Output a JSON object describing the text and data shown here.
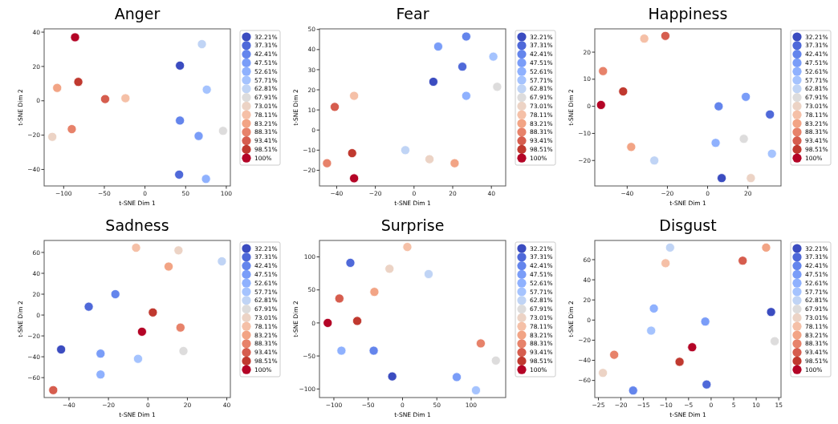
{
  "chart_data": [
    {
      "type": "scatter",
      "title": "Anger",
      "xlabel": "t-SNE Dim 1",
      "ylabel": "t-SNE Dim 2",
      "xlim": [
        -124,
        105
      ],
      "ylim": [
        -49.6,
        41.9
      ],
      "xticks": [
        -100,
        -50,
        0,
        50,
        100
      ],
      "yticks": [
        -40,
        -20,
        0,
        20,
        40
      ],
      "grid": false,
      "legend": "right",
      "marker": "circle",
      "series": [
        {
          "name": "32.21%",
          "color": "#3b4cc0",
          "x": [
            43
          ],
          "values": [
            20.5
          ]
        },
        {
          "name": "37.31%",
          "color": "#4f69d9",
          "x": [
            42
          ],
          "values": [
            -43
          ]
        },
        {
          "name": "42.41%",
          "color": "#6485ec",
          "x": [
            43
          ],
          "values": [
            -11.5
          ]
        },
        {
          "name": "47.51%",
          "color": "#7a9df8",
          "x": [
            66
          ],
          "values": [
            -20.5
          ]
        },
        {
          "name": "52.61%",
          "color": "#8fb1fe",
          "x": [
            75
          ],
          "values": [
            -45.5
          ]
        },
        {
          "name": "57.71%",
          "color": "#a5c3fe",
          "x": [
            76
          ],
          "values": [
            6.5
          ]
        },
        {
          "name": "62.81%",
          "color": "#c0d4f5",
          "x": [
            70
          ],
          "values": [
            33
          ]
        },
        {
          "name": "67.91%",
          "color": "#dddcdc",
          "x": [
            96
          ],
          "values": [
            -17.5
          ]
        },
        {
          "name": "73.01%",
          "color": "#ecd3c5",
          "x": [
            -114
          ],
          "values": [
            -21
          ]
        },
        {
          "name": "78.11%",
          "color": "#f5c0a7",
          "x": [
            -24
          ],
          "values": [
            1.5
          ]
        },
        {
          "name": "83.21%",
          "color": "#f2a485",
          "x": [
            -108
          ],
          "values": [
            7.5
          ]
        },
        {
          "name": "88.31%",
          "color": "#e7826a",
          "x": [
            -90
          ],
          "values": [
            -16.5
          ]
        },
        {
          "name": "93.41%",
          "color": "#d65d4e",
          "x": [
            -49
          ],
          "values": [
            1
          ]
        },
        {
          "name": "98.51%",
          "color": "#c0392f",
          "x": [
            -82
          ],
          "values": [
            11
          ]
        },
        {
          "name": "100%",
          "color": "#b40426",
          "x": [
            -86
          ],
          "values": [
            37
          ]
        }
      ]
    },
    {
      "type": "scatter",
      "title": "Fear",
      "xlabel": "t-SNE Dim 1",
      "ylabel": "t-SNE Dim 2",
      "xlim": [
        -48.9,
        47.4
      ],
      "ylim": [
        -27.8,
        50.3
      ],
      "xticks": [
        -40,
        -20,
        0,
        20,
        40
      ],
      "yticks": [
        -20,
        -10,
        0,
        10,
        20,
        30,
        40,
        50
      ],
      "grid": false,
      "legend": "right",
      "marker": "circle",
      "series": [
        {
          "name": "32.21%",
          "color": "#3b4cc0",
          "x": [
            10
          ],
          "values": [
            24
          ]
        },
        {
          "name": "37.31%",
          "color": "#4f69d9",
          "x": [
            25
          ],
          "values": [
            31.5
          ]
        },
        {
          "name": "42.41%",
          "color": "#6485ec",
          "x": [
            27
          ],
          "values": [
            46.5
          ]
        },
        {
          "name": "47.51%",
          "color": "#7a9df8",
          "x": [
            12.5
          ],
          "values": [
            41.5
          ]
        },
        {
          "name": "52.61%",
          "color": "#8fb1fe",
          "x": [
            27
          ],
          "values": [
            17
          ]
        },
        {
          "name": "57.71%",
          "color": "#a5c3fe",
          "x": [
            41
          ],
          "values": [
            36.5
          ]
        },
        {
          "name": "62.81%",
          "color": "#c0d4f5",
          "x": [
            -4.5
          ],
          "values": [
            -10
          ]
        },
        {
          "name": "67.91%",
          "color": "#dddcdc",
          "x": [
            43
          ],
          "values": [
            21.5
          ]
        },
        {
          "name": "73.01%",
          "color": "#ecd3c5",
          "x": [
            8
          ],
          "values": [
            -14.5
          ]
        },
        {
          "name": "78.11%",
          "color": "#f5c0a7",
          "x": [
            -31
          ],
          "values": [
            17
          ]
        },
        {
          "name": "83.21%",
          "color": "#f2a485",
          "x": [
            21
          ],
          "values": [
            -16.5
          ]
        },
        {
          "name": "88.31%",
          "color": "#e7826a",
          "x": [
            -45
          ],
          "values": [
            -16.5
          ]
        },
        {
          "name": "93.41%",
          "color": "#d65d4e",
          "x": [
            -41
          ],
          "values": [
            11.5
          ]
        },
        {
          "name": "98.51%",
          "color": "#c0392f",
          "x": [
            -32
          ],
          "values": [
            -11.5
          ]
        },
        {
          "name": "100%",
          "color": "#b40426",
          "x": [
            -31
          ],
          "values": [
            -24
          ]
        }
      ]
    },
    {
      "type": "scatter",
      "title": "Happiness",
      "xlabel": "t-SNE Dim 1",
      "ylabel": "t-SNE Dim 2",
      "xlim": [
        -56.1,
        36.5
      ],
      "ylim": [
        -29.4,
        28.6
      ],
      "xticks": [
        -40,
        -20,
        0,
        20
      ],
      "yticks": [
        -20,
        -10,
        0,
        10,
        20
      ],
      "grid": false,
      "legend": "right",
      "marker": "circle",
      "series": [
        {
          "name": "32.21%",
          "color": "#3b4cc0",
          "x": [
            7
          ],
          "values": [
            -26.5
          ]
        },
        {
          "name": "37.31%",
          "color": "#4f69d9",
          "x": [
            31
          ],
          "values": [
            -3
          ]
        },
        {
          "name": "42.41%",
          "color": "#6485ec",
          "x": [
            5.5
          ],
          "values": [
            0
          ]
        },
        {
          "name": "47.51%",
          "color": "#7a9df8",
          "x": [
            19
          ],
          "values": [
            3.5
          ]
        },
        {
          "name": "52.61%",
          "color": "#8fb1fe",
          "x": [
            4
          ],
          "values": [
            -13.5
          ]
        },
        {
          "name": "57.71%",
          "color": "#a5c3fe",
          "x": [
            32
          ],
          "values": [
            -17.5
          ]
        },
        {
          "name": "62.81%",
          "color": "#c0d4f5",
          "x": [
            -26.5
          ],
          "values": [
            -20
          ]
        },
        {
          "name": "67.91%",
          "color": "#dddcdc",
          "x": [
            18
          ],
          "values": [
            -12
          ]
        },
        {
          "name": "73.01%",
          "color": "#ecd3c5",
          "x": [
            21.5
          ],
          "values": [
            -26.5
          ]
        },
        {
          "name": "78.11%",
          "color": "#f5c0a7",
          "x": [
            -31.5
          ],
          "values": [
            25
          ]
        },
        {
          "name": "83.21%",
          "color": "#f2a485",
          "x": [
            -38
          ],
          "values": [
            -15
          ]
        },
        {
          "name": "88.31%",
          "color": "#e7826a",
          "x": [
            -52
          ],
          "values": [
            13
          ]
        },
        {
          "name": "93.41%",
          "color": "#d65d4e",
          "x": [
            -21
          ],
          "values": [
            26
          ]
        },
        {
          "name": "98.51%",
          "color": "#c0392f",
          "x": [
            -42
          ],
          "values": [
            5.5
          ]
        },
        {
          "name": "100%",
          "color": "#b40426",
          "x": [
            -53
          ],
          "values": [
            0.5
          ]
        }
      ]
    },
    {
      "type": "scatter",
      "title": "Sadness",
      "xlabel": "t-SNE Dim 1",
      "ylabel": "t-SNE Dim 2",
      "xlim": [
        -52.6,
        41.8
      ],
      "ylim": [
        -79.1,
        71.5
      ],
      "xticks": [
        -40,
        -20,
        0,
        20,
        40
      ],
      "yticks": [
        -60,
        -40,
        -20,
        0,
        20,
        40,
        60
      ],
      "grid": false,
      "legend": "right",
      "marker": "circle",
      "series": [
        {
          "name": "32.21%",
          "color": "#3b4cc0",
          "x": [
            -44
          ],
          "values": [
            -33
          ]
        },
        {
          "name": "37.31%",
          "color": "#4f69d9",
          "x": [
            -30
          ],
          "values": [
            8
          ]
        },
        {
          "name": "42.41%",
          "color": "#6485ec",
          "x": [
            -16.5
          ],
          "values": [
            20
          ]
        },
        {
          "name": "47.51%",
          "color": "#7a9df8",
          "x": [
            -24
          ],
          "values": [
            -37
          ]
        },
        {
          "name": "52.61%",
          "color": "#8fb1fe",
          "x": [
            -24
          ],
          "values": [
            -57
          ]
        },
        {
          "name": "57.71%",
          "color": "#a5c3fe",
          "x": [
            -5
          ],
          "values": [
            -42
          ]
        },
        {
          "name": "62.81%",
          "color": "#c0d4f5",
          "x": [
            37.5
          ],
          "values": [
            51.5
          ]
        },
        {
          "name": "67.91%",
          "color": "#dddcdc",
          "x": [
            18
          ],
          "values": [
            -34.5
          ]
        },
        {
          "name": "73.01%",
          "color": "#ecd3c5",
          "x": [
            15.5
          ],
          "values": [
            62
          ]
        },
        {
          "name": "78.11%",
          "color": "#f5c0a7",
          "x": [
            -6
          ],
          "values": [
            64.5
          ]
        },
        {
          "name": "83.21%",
          "color": "#f2a485",
          "x": [
            10.5
          ],
          "values": [
            46.5
          ]
        },
        {
          "name": "88.31%",
          "color": "#e7826a",
          "x": [
            16.5
          ],
          "values": [
            -12
          ]
        },
        {
          "name": "93.41%",
          "color": "#d65d4e",
          "x": [
            -48
          ],
          "values": [
            -72
          ]
        },
        {
          "name": "98.51%",
          "color": "#c0392f",
          "x": [
            2.5
          ],
          "values": [
            2.5
          ]
        },
        {
          "name": "100%",
          "color": "#b40426",
          "x": [
            -3
          ],
          "values": [
            -16
          ]
        }
      ]
    },
    {
      "type": "scatter",
      "title": "Surprise",
      "xlabel": "t-SNE Dim 1",
      "ylabel": "t-SNE Dim 2",
      "xlim": [
        -121,
        150.3
      ],
      "ylim": [
        -113,
        124.9
      ],
      "xticks": [
        -100,
        -50,
        0,
        50,
        100
      ],
      "yticks": [
        -100,
        -50,
        0,
        50,
        100
      ],
      "grid": false,
      "legend": "right",
      "marker": "circle",
      "series": [
        {
          "name": "32.21%",
          "color": "#3b4cc0",
          "x": [
            -15
          ],
          "values": [
            -81
          ]
        },
        {
          "name": "37.31%",
          "color": "#4f69d9",
          "x": [
            -76
          ],
          "values": [
            91
          ]
        },
        {
          "name": "42.41%",
          "color": "#6485ec",
          "x": [
            -42
          ],
          "values": [
            -42
          ]
        },
        {
          "name": "47.51%",
          "color": "#7a9df8",
          "x": [
            79
          ],
          "values": [
            -82
          ]
        },
        {
          "name": "52.61%",
          "color": "#8fb1fe",
          "x": [
            -89
          ],
          "values": [
            -42
          ]
        },
        {
          "name": "57.71%",
          "color": "#a5c3fe",
          "x": [
            107
          ],
          "values": [
            -102
          ]
        },
        {
          "name": "62.81%",
          "color": "#c0d4f5",
          "x": [
            38
          ],
          "values": [
            74
          ]
        },
        {
          "name": "67.91%",
          "color": "#dddcdc",
          "x": [
            136
          ],
          "values": [
            -57
          ]
        },
        {
          "name": "73.01%",
          "color": "#ecd3c5",
          "x": [
            -19
          ],
          "values": [
            82
          ]
        },
        {
          "name": "78.11%",
          "color": "#f5c0a7",
          "x": [
            7
          ],
          "values": [
            115
          ]
        },
        {
          "name": "83.21%",
          "color": "#f2a485",
          "x": [
            -41
          ],
          "values": [
            47
          ]
        },
        {
          "name": "88.31%",
          "color": "#e7826a",
          "x": [
            114
          ],
          "values": [
            -31
          ]
        },
        {
          "name": "93.41%",
          "color": "#d65d4e",
          "x": [
            -92
          ],
          "values": [
            37
          ]
        },
        {
          "name": "98.51%",
          "color": "#c0392f",
          "x": [
            -66
          ],
          "values": [
            3
          ]
        },
        {
          "name": "100%",
          "color": "#b40426",
          "x": [
            -109
          ],
          "values": [
            0
          ]
        }
      ]
    },
    {
      "type": "scatter",
      "title": "Disgust",
      "xlabel": "t-SNE Dim 1",
      "ylabel": "t-SNE Dim 2",
      "xlim": [
        -25.8,
        15.5
      ],
      "ylim": [
        -77,
        79.1
      ],
      "xticks": [
        -25,
        -20,
        -15,
        -10,
        -5,
        0,
        5,
        10,
        15
      ],
      "yticks": [
        -60,
        -40,
        -20,
        0,
        20,
        40,
        60
      ],
      "grid": false,
      "legend": "right",
      "marker": "circle",
      "series": [
        {
          "name": "32.21%",
          "color": "#3b4cc0",
          "x": [
            13.3
          ],
          "values": [
            8
          ]
        },
        {
          "name": "37.31%",
          "color": "#4f69d9",
          "x": [
            -1
          ],
          "values": [
            -64
          ]
        },
        {
          "name": "42.41%",
          "color": "#6485ec",
          "x": [
            -17.3
          ],
          "values": [
            -70
          ]
        },
        {
          "name": "47.51%",
          "color": "#7a9df8",
          "x": [
            -1.3
          ],
          "values": [
            -1.5
          ]
        },
        {
          "name": "52.61%",
          "color": "#8fb1fe",
          "x": [
            -12.7
          ],
          "values": [
            11.5
          ]
        },
        {
          "name": "57.71%",
          "color": "#a5c3fe",
          "x": [
            -13.3
          ],
          "values": [
            -10.5
          ]
        },
        {
          "name": "62.81%",
          "color": "#c0d4f5",
          "x": [
            -9.1
          ],
          "values": [
            72
          ]
        },
        {
          "name": "67.91%",
          "color": "#dddcdc",
          "x": [
            14.1
          ],
          "values": [
            -21
          ]
        },
        {
          "name": "73.01%",
          "color": "#ecd3c5",
          "x": [
            -24
          ],
          "values": [
            -52.5
          ]
        },
        {
          "name": "78.11%",
          "color": "#f5c0a7",
          "x": [
            -10.1
          ],
          "values": [
            56.5
          ]
        },
        {
          "name": "83.21%",
          "color": "#f2a485",
          "x": [
            12.2
          ],
          "values": [
            72
          ]
        },
        {
          "name": "88.31%",
          "color": "#e7826a",
          "x": [
            -21.5
          ],
          "values": [
            -34.5
          ]
        },
        {
          "name": "93.41%",
          "color": "#d65d4e",
          "x": [
            7
          ],
          "values": [
            59
          ]
        },
        {
          "name": "98.51%",
          "color": "#c0392f",
          "x": [
            -7
          ],
          "values": [
            -41.5
          ]
        },
        {
          "name": "100%",
          "color": "#b40426",
          "x": [
            -4.2
          ],
          "values": [
            -27
          ]
        }
      ]
    }
  ]
}
